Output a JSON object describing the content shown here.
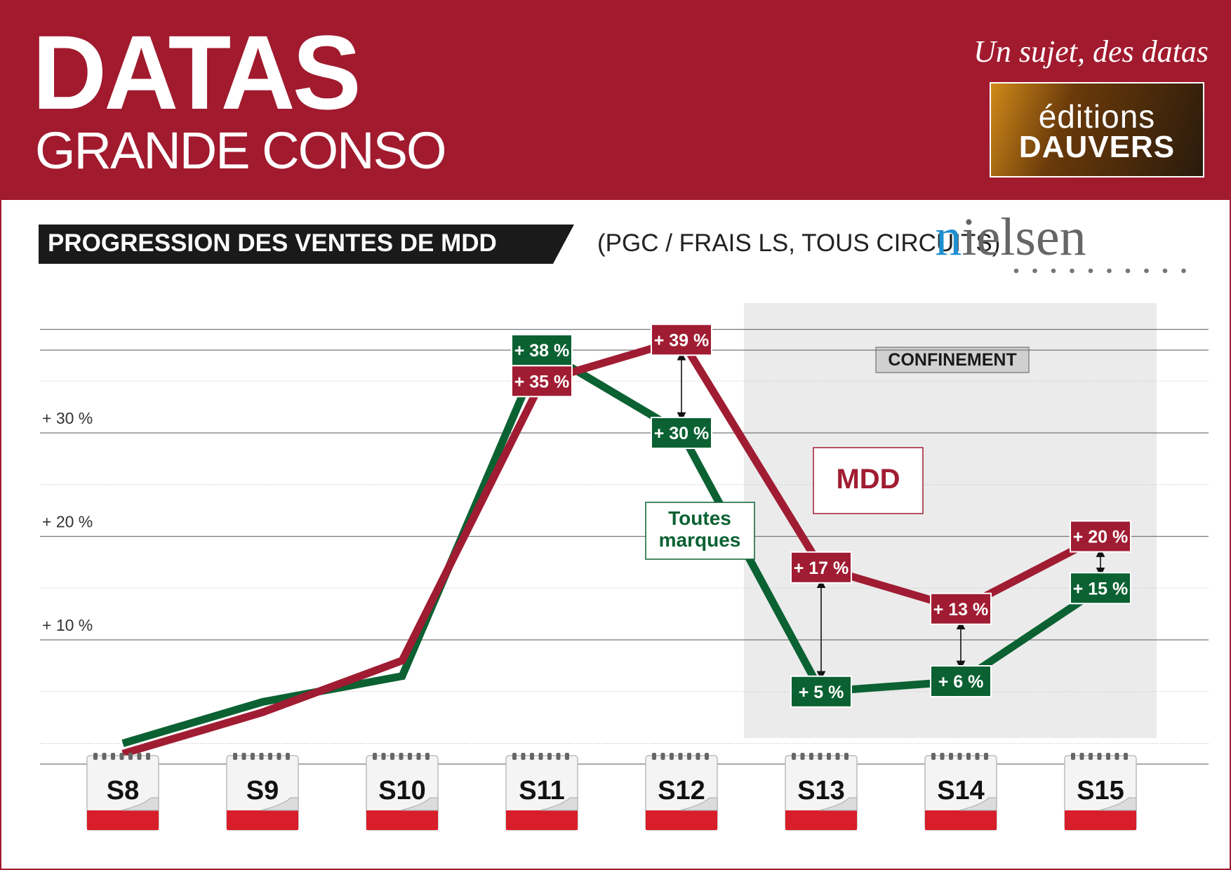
{
  "header": {
    "brand_main": "DATAS",
    "brand_sub": "GRANDE CONSO",
    "tagline": "Un sujet, des datas",
    "publisher_line1": "éditions",
    "publisher_line2": "DAUVERS",
    "source_logo": "nielsen"
  },
  "colors": {
    "header_bg": "#a11a2e",
    "mdd": "#a01c32",
    "toutes_marques": "#0b6132",
    "confinement_bg": "#ebebeb"
  },
  "chart_data": {
    "type": "line",
    "title": "PROGRESSION DES VENTES DE MDD",
    "subtitle": "(PGC / FRAIS LS, TOUS CIRCUITS)",
    "categories": [
      "S8",
      "S9",
      "S10",
      "S11",
      "S12",
      "S13",
      "S14",
      "S15"
    ],
    "ylim": [
      -2,
      40
    ],
    "y_ticks": [
      {
        "value": 10,
        "label": "+ 10 %"
      },
      {
        "value": 20,
        "label": "+ 20 %"
      },
      {
        "value": 30,
        "label": "+ 30 %"
      }
    ],
    "grid": true,
    "series": [
      {
        "name": "Toutes marques",
        "color": "#0b6132",
        "values": [
          0,
          4,
          6.5,
          38,
          30,
          5,
          6,
          15
        ],
        "labels": [
          "",
          "",
          "",
          "+ 38 %",
          "+ 30 %",
          "+ 5 %",
          "+ 6 %",
          "+ 15 %"
        ]
      },
      {
        "name": "MDD",
        "color": "#a01c32",
        "values": [
          -1,
          3,
          8,
          35,
          39,
          17,
          13,
          20
        ],
        "labels": [
          "",
          "",
          "",
          "+ 35 %",
          "+ 39 %",
          "+ 17 %",
          "+ 13 %",
          "+ 20 %"
        ]
      }
    ],
    "annotations": {
      "confinement_label": "CONFINEMENT",
      "confinement_start": "S13",
      "confinement_end": "S15",
      "gap_arrows_at": [
        "S12",
        "S13",
        "S14",
        "S15"
      ]
    }
  }
}
